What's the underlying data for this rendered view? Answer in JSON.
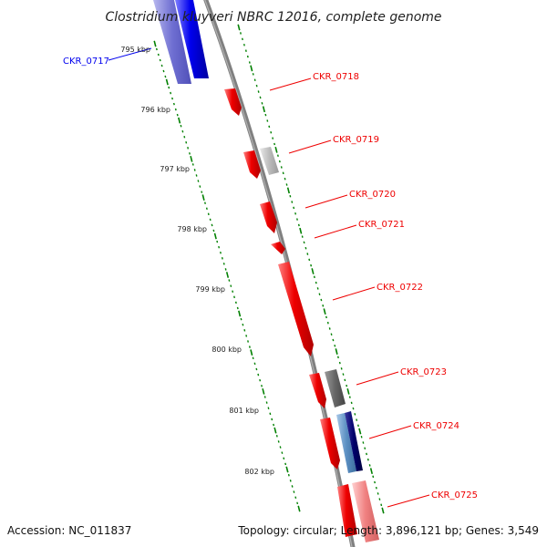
{
  "title": "Clostridium kluyveri NBRC 12016, complete genome",
  "footer": {
    "accession": "Accession: NC_011837",
    "summary": "Topology: circular; Length: 3,896,121 bp; Genes: 3,549"
  },
  "scale_labels": [
    "795 kbp",
    "796 kbp",
    "797 kbp",
    "798 kbp",
    "799 kbp",
    "800 kbp",
    "801 kbp",
    "802 kbp"
  ],
  "genes": [
    {
      "label": "CKR_0717",
      "strand": "reverse",
      "color": "#0000ee"
    },
    {
      "label": "CKR_0718",
      "strand": "forward",
      "color": "#ee0000"
    },
    {
      "label": "CKR_0719",
      "strand": "forward",
      "color": "#ee0000"
    },
    {
      "label": "CKR_0720",
      "strand": "forward",
      "color": "#ee0000"
    },
    {
      "label": "CKR_0721",
      "strand": "forward",
      "color": "#ee0000"
    },
    {
      "label": "CKR_0722",
      "strand": "forward",
      "color": "#ee0000"
    },
    {
      "label": "CKR_0723",
      "strand": "forward",
      "color": "#ee0000"
    },
    {
      "label": "CKR_0724",
      "strand": "forward",
      "color": "#ee0000"
    },
    {
      "label": "CKR_0725",
      "strand": "forward",
      "color": "#ee0000"
    }
  ],
  "colors": {
    "backbone": "#808080",
    "gene_forward": "#ee0000",
    "gene_reverse": "#0000ee",
    "label_line": "#ee0000",
    "tick_marks": "#008000",
    "cog_gray": "#666666",
    "cog_light": "#bbbbbb",
    "cog_navy": "#00006b",
    "cog_steel": "#5b8fc2",
    "cog_pink": "#f08080"
  }
}
